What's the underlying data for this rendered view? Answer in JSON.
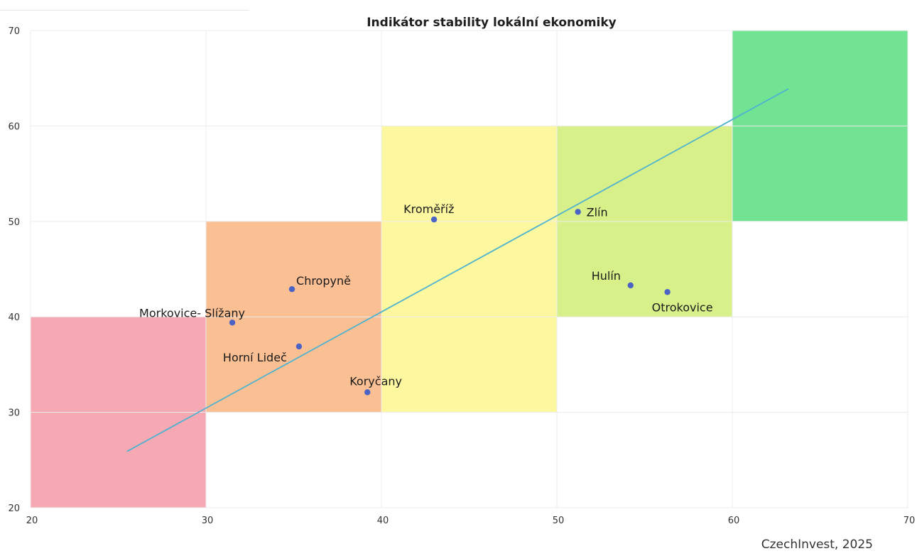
{
  "chart_data": {
    "type": "scatter",
    "title": "Indikátor stability lokální ekonomiky",
    "xlabel": "",
    "ylabel": "",
    "xlim": [
      20,
      70
    ],
    "ylim": [
      20,
      70
    ],
    "x_ticks": [
      "20",
      "30",
      "40",
      "50",
      "60",
      "70"
    ],
    "y_ticks": [
      "20",
      "30",
      "40",
      "50",
      "60",
      "70"
    ],
    "grid": true,
    "zones": [
      {
        "x": [
          20,
          30
        ],
        "y": [
          20,
          40
        ],
        "color": "#f7a9b3"
      },
      {
        "x": [
          30,
          40
        ],
        "y": [
          30,
          50
        ],
        "color": "#fbbf94"
      },
      {
        "x": [
          40,
          50
        ],
        "y": [
          30,
          60
        ],
        "color": "#fdf8a0"
      },
      {
        "x": [
          50,
          60
        ],
        "y": [
          40,
          60
        ],
        "color": "#d8f08a"
      },
      {
        "x": [
          60,
          70
        ],
        "y": [
          50,
          70
        ],
        "color": "#72e293"
      }
    ],
    "points": [
      {
        "label": "Kroměříž",
        "x": 43.0,
        "y": 50.2
      },
      {
        "label": "Zlín",
        "x": 51.2,
        "y": 51.0
      },
      {
        "label": "Chropyně",
        "x": 34.9,
        "y": 42.9
      },
      {
        "label": "Hulín",
        "x": 54.2,
        "y": 43.3
      },
      {
        "label": "Otrokovice",
        "x": 56.3,
        "y": 42.6
      },
      {
        "label": "Morkovice- Slížany",
        "x": 31.5,
        "y": 39.4
      },
      {
        "label": "Horní Lideč",
        "x": 35.3,
        "y": 36.9
      },
      {
        "label": "Koryčany",
        "x": 39.2,
        "y": 32.1
      }
    ],
    "trendline": {
      "x": [
        25.5,
        63.2
      ],
      "y": [
        25.9,
        63.9
      ],
      "color": "#4fb3d0"
    },
    "point_color": "#4a63c4"
  },
  "source": "CzechInvest, 2025"
}
